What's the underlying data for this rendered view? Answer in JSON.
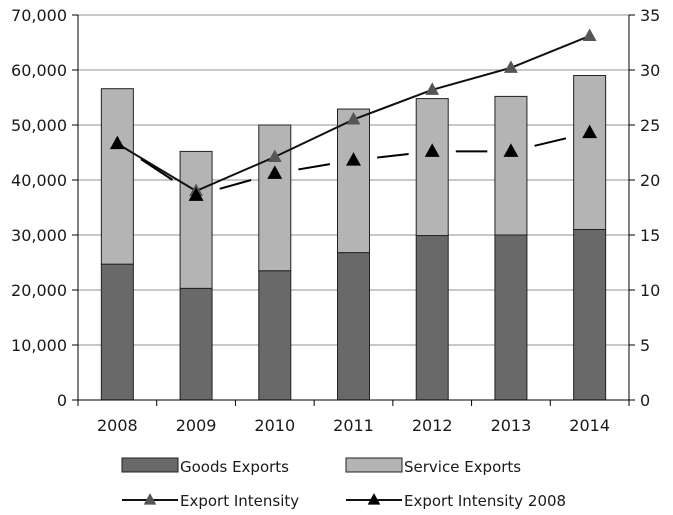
{
  "chart_data": {
    "type": "bar",
    "stacked": true,
    "categories": [
      "2008",
      "2009",
      "2010",
      "2011",
      "2012",
      "2013",
      "2014"
    ],
    "series": [
      {
        "name": "Goods Exports",
        "kind": "bar",
        "axis": "left",
        "color": "#696969",
        "values": [
          24700,
          20300,
          23500,
          26800,
          29900,
          30000,
          31000
        ]
      },
      {
        "name": "Service Exports",
        "kind": "bar",
        "axis": "left",
        "color": "#b4b4b4",
        "values": [
          31900,
          24900,
          26500,
          26100,
          24900,
          25200,
          28000
        ]
      },
      {
        "name": "Export Intensity",
        "kind": "line",
        "axis": "right",
        "color": "#555555",
        "marker": "triangle",
        "values": [
          23.3,
          19.0,
          22.1,
          25.5,
          28.2,
          30.2,
          33.1
        ]
      },
      {
        "name": "Export Intensity 2008",
        "kind": "line",
        "axis": "right",
        "color": "#000000",
        "marker": "triangle",
        "values": [
          23.3,
          18.6,
          20.6,
          21.8,
          22.6,
          22.6,
          24.3
        ]
      }
    ],
    "y_left": {
      "ticks": [
        "0",
        "10,000",
        "20,000",
        "30,000",
        "40,000",
        "50,000",
        "60,000",
        "70,000"
      ],
      "min": 0,
      "max": 70000
    },
    "y_right": {
      "ticks": [
        "0",
        "5",
        "10",
        "15",
        "20",
        "25",
        "30",
        "35"
      ],
      "min": 0,
      "max": 35
    },
    "grid": true,
    "legend_position": "bottom"
  }
}
